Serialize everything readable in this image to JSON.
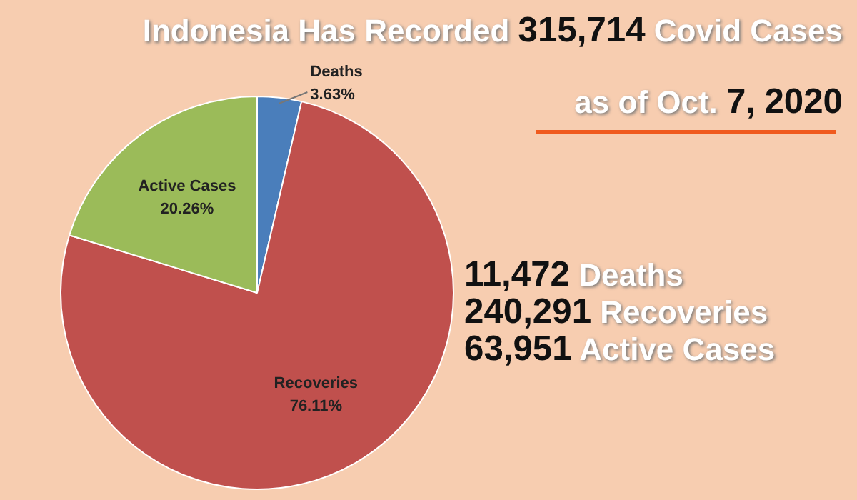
{
  "chart_data": {
    "type": "pie",
    "title": "Indonesia  Has Recorded 315,714 Covid Cases",
    "subtitle": "as of Oct. 7, 2020",
    "categories": [
      "Deaths",
      "Recoveries",
      "Active Cases"
    ],
    "values": [
      3.63,
      76.11,
      20.26
    ],
    "colors": [
      "#4a7ebb",
      "#c0504d",
      "#9bbb59"
    ],
    "value_labels": [
      "3.63%",
      "76.11%",
      "20.26%"
    ],
    "annotations": [
      "11,472 Deaths",
      "240,291 Recoveries",
      "63,951 Active Cases"
    ]
  }
}
